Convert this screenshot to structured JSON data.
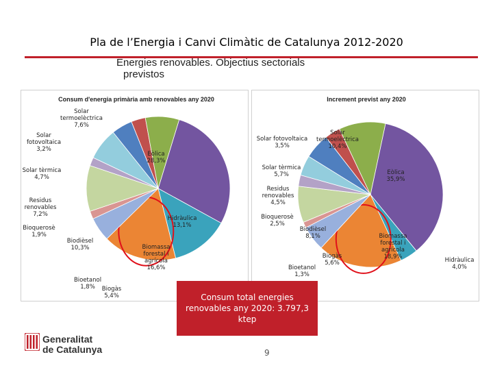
{
  "slide": {
    "title": "Pla de l’Energia i Canvi Climàtic de Catalunya 2012-2020",
    "subtitle_line1": "Energies renovables. Objectius sectorials",
    "subtitle_line2": "previstos",
    "total_text": "Consum total energies renovables any 2020: 3.797,3 ktep",
    "page_number": "9",
    "logo_line1": "Generalitat",
    "logo_line2": "de Catalunya"
  },
  "colors": {
    "accent": "#c0202a",
    "highlight_ring": "#e0101a"
  },
  "chart_data": [
    {
      "type": "pie",
      "title": "Consum d'energia primària amb renovables any 2020",
      "start": "Eòlica",
      "slices": [
        {
          "label": "Eòlica",
          "value": 28.3,
          "value_label": "28,3%",
          "color": "#7355a0"
        },
        {
          "label": "Hidràulica",
          "value": 13.1,
          "value_label": "13,1%",
          "color": "#3aa3bc"
        },
        {
          "label": "Biomassa forestal i agrícola",
          "value": 16.6,
          "value_label": "16,6%",
          "color": "#eb8534",
          "highlight": true
        },
        {
          "label": "Biogàs",
          "value": 5.4,
          "value_label": "5,4%",
          "color": "#98b0dd"
        },
        {
          "label": "Bioetanol",
          "value": 1.8,
          "value_label": "1,8%",
          "color": "#d99592"
        },
        {
          "label": "Biodièsel",
          "value": 10.3,
          "value_label": "10,3%",
          "color": "#c4d6a0"
        },
        {
          "label": "Bioquerosè",
          "value": 1.9,
          "value_label": "1,9%",
          "color": "#b3a2c7"
        },
        {
          "label": "Residus renovables",
          "value": 7.2,
          "value_label": "7,2%",
          "color": "#93cddd"
        },
        {
          "label": "Solar tèrmica",
          "value": 4.7,
          "value_label": "4,7%",
          "color": "#4f7fbf"
        },
        {
          "label": "Solar fotovoltaica",
          "value": 3.2,
          "value_label": "3,2%",
          "color": "#c0504d"
        },
        {
          "label": "Solar termoelèctrica",
          "value": 7.6,
          "value_label": "7,6%",
          "color": "#8cae4b"
        }
      ]
    },
    {
      "type": "pie",
      "title": "Increment previst any 2020",
      "start": "Eòlica",
      "slices": [
        {
          "label": "Eòlica",
          "value": 35.9,
          "value_label": "35,9%",
          "color": "#7355a0"
        },
        {
          "label": "Hidràulica",
          "value": 4.0,
          "value_label": "4,0%",
          "color": "#3aa3bc"
        },
        {
          "label": "Biomassa forestal i agrícola",
          "value": 18.9,
          "value_label": "18,9%",
          "color": "#eb8534",
          "highlight": true
        },
        {
          "label": "Biogàs",
          "value": 5.6,
          "value_label": "5,6%",
          "color": "#98b0dd"
        },
        {
          "label": "Bioetanol",
          "value": 1.3,
          "value_label": "1,3%",
          "color": "#d99592"
        },
        {
          "label": "Biodièsel",
          "value": 8.1,
          "value_label": "8,1%",
          "color": "#c4d6a0"
        },
        {
          "label": "Bioquerosè",
          "value": 2.5,
          "value_label": "2,5%",
          "color": "#b3a2c7"
        },
        {
          "label": "Residus renovables",
          "value": 4.5,
          "value_label": "4,5%",
          "color": "#93cddd"
        },
        {
          "label": "Solar tèrmica",
          "value": 5.7,
          "value_label": "5,7%",
          "color": "#4f7fbf"
        },
        {
          "label": "Solar fotovoltaica",
          "value": 3.5,
          "value_label": "3,5%",
          "color": "#c0504d"
        },
        {
          "label": "Solar termoelèctrica",
          "value": 10.4,
          "value_label": "10,4%",
          "color": "#8cae4b"
        }
      ]
    }
  ]
}
